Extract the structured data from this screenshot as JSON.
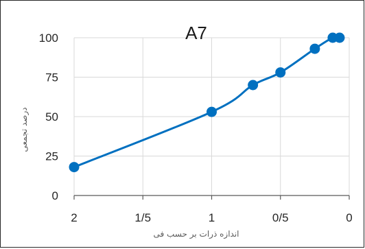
{
  "chart_data": {
    "type": "line",
    "title": "A7",
    "xlabel": "اندازه ذرات بر حسب فی",
    "ylabel": "درصد تجمعی",
    "x_axis_reversed": true,
    "xlim": [
      0,
      2
    ],
    "ylim": [
      0,
      100
    ],
    "x_ticks": [
      2,
      1.5,
      1,
      0.5,
      0
    ],
    "x_tick_labels": [
      "2",
      "1/5",
      "1",
      "0/5",
      "0"
    ],
    "y_ticks": [
      0,
      25,
      50,
      75,
      100
    ],
    "y_tick_labels": [
      "0",
      "25",
      "50",
      "75",
      "100"
    ],
    "grid": true,
    "series": [
      {
        "color": "#0070C0",
        "x": [
          2,
          1,
          0.7,
          0.5,
          0.25,
          0.12,
          0.07
        ],
        "y": [
          18,
          53,
          70,
          78,
          93,
          100,
          100
        ]
      }
    ]
  }
}
